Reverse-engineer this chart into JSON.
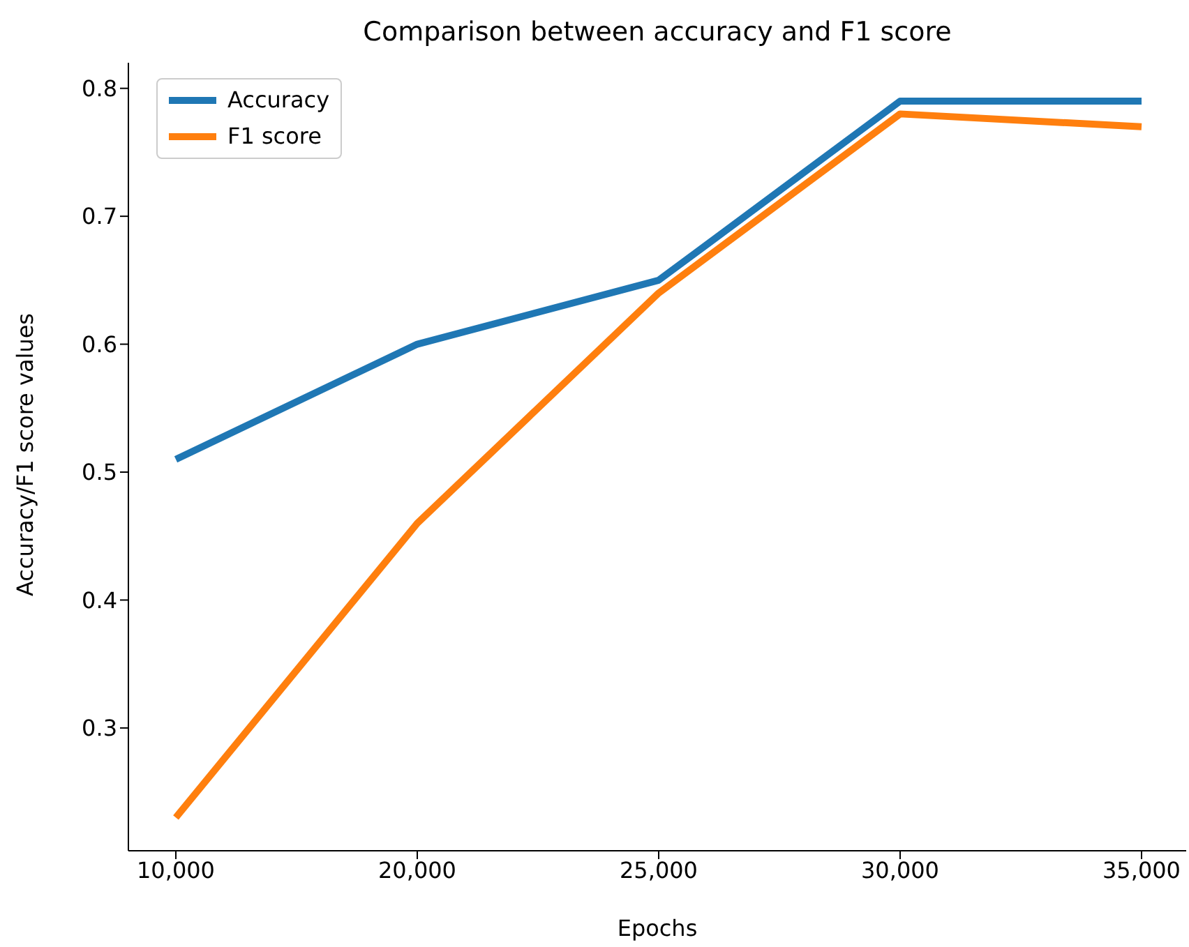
{
  "chart_data": {
    "type": "line",
    "title": "Comparison between accuracy and F1 score",
    "xlabel": "Epochs",
    "ylabel": "Accuracy/F1 score values",
    "categories": [
      "10,000",
      "20,000",
      "25,000",
      "30,000",
      "35,000"
    ],
    "series": [
      {
        "name": "Accuracy",
        "color": "#1f77b4",
        "values": [
          0.51,
          0.6,
          0.65,
          0.79,
          0.79
        ]
      },
      {
        "name": "F1 score",
        "color": "#ff7f0e",
        "values": [
          0.23,
          0.46,
          0.64,
          0.78,
          0.77
        ]
      }
    ],
    "ylim": [
      0.204,
      0.82
    ],
    "yticks": [
      0.3,
      0.4,
      0.5,
      0.6,
      0.7,
      0.8
    ],
    "grid": false,
    "legend": "top left",
    "marker": "none",
    "line_style": "solid"
  }
}
